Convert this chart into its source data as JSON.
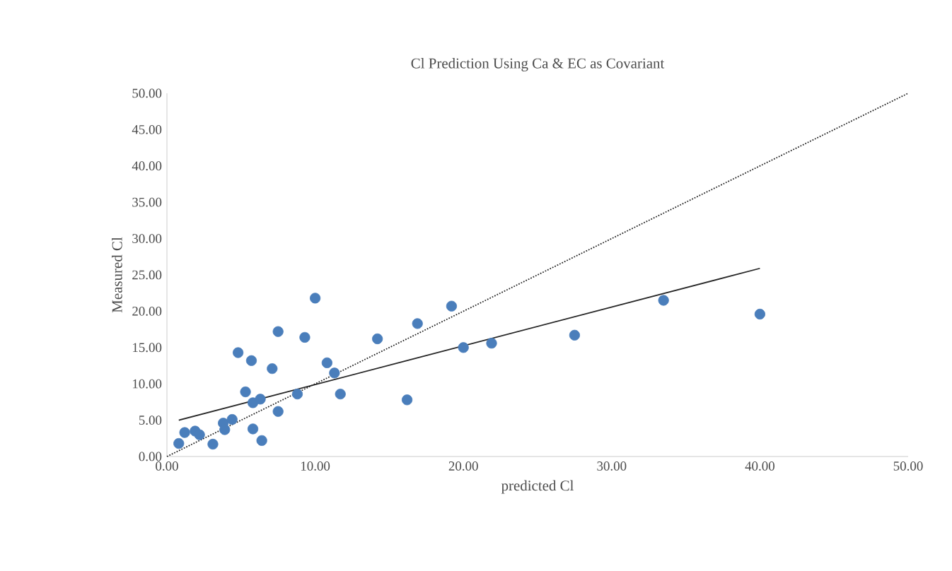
{
  "chart_data": {
    "type": "scatter",
    "title": "Cl Prediction Using Ca & EC as Covariant",
    "xlabel": "predicted Cl",
    "ylabel": "Measured Cl",
    "xlim": [
      0,
      50
    ],
    "ylim": [
      0,
      50
    ],
    "xticks": [
      {
        "value": 0,
        "label": "0.00"
      },
      {
        "value": 10,
        "label": "10.00"
      },
      {
        "value": 20,
        "label": "20.00"
      },
      {
        "value": 30,
        "label": "30.00"
      },
      {
        "value": 40,
        "label": "40.00"
      },
      {
        "value": 50,
        "label": "50.00"
      }
    ],
    "yticks": [
      {
        "value": 0,
        "label": "0.00"
      },
      {
        "value": 5,
        "label": "5.00"
      },
      {
        "value": 10,
        "label": "10.00"
      },
      {
        "value": 15,
        "label": "15.00"
      },
      {
        "value": 20,
        "label": "20.00"
      },
      {
        "value": 25,
        "label": "25.00"
      },
      {
        "value": 30,
        "label": "30.00"
      },
      {
        "value": 35,
        "label": "35.00"
      },
      {
        "value": 40,
        "label": "40.00"
      },
      {
        "value": 45,
        "label": "45.00"
      },
      {
        "value": 50,
        "label": "50.00"
      }
    ],
    "grid": false,
    "series": [
      {
        "marker": "circle",
        "color": "#4a7ebb",
        "x": [
          0.8,
          1.2,
          1.9,
          2.2,
          3.1,
          3.8,
          3.9,
          4.4,
          4.8,
          5.3,
          5.7,
          5.8,
          5.8,
          6.3,
          6.4,
          7.1,
          7.5,
          7.5,
          8.8,
          9.3,
          10.0,
          10.8,
          11.3,
          11.7,
          14.2,
          16.2,
          16.9,
          19.2,
          20.0,
          21.9,
          27.5,
          33.5,
          40.0
        ],
        "values": [
          1.8,
          3.3,
          3.5,
          3.0,
          1.7,
          4.6,
          3.7,
          5.1,
          14.3,
          8.9,
          13.2,
          3.8,
          7.4,
          7.9,
          2.2,
          12.1,
          17.2,
          6.2,
          8.6,
          16.4,
          21.8,
          12.9,
          11.5,
          8.6,
          16.2,
          7.8,
          18.3,
          20.7,
          15.0,
          15.6,
          16.7,
          21.5,
          19.6
        ]
      },
      {
        "type": "line",
        "marker": "none",
        "color": "#262626",
        "line_style": "solid",
        "x": [
          0.8,
          40.0
        ],
        "values": [
          5.0,
          25.9
        ]
      },
      {
        "type": "line",
        "marker": "none",
        "color": "#262626",
        "line_style": "dotted",
        "x": [
          0,
          50
        ],
        "values": [
          0,
          50
        ]
      }
    ]
  }
}
